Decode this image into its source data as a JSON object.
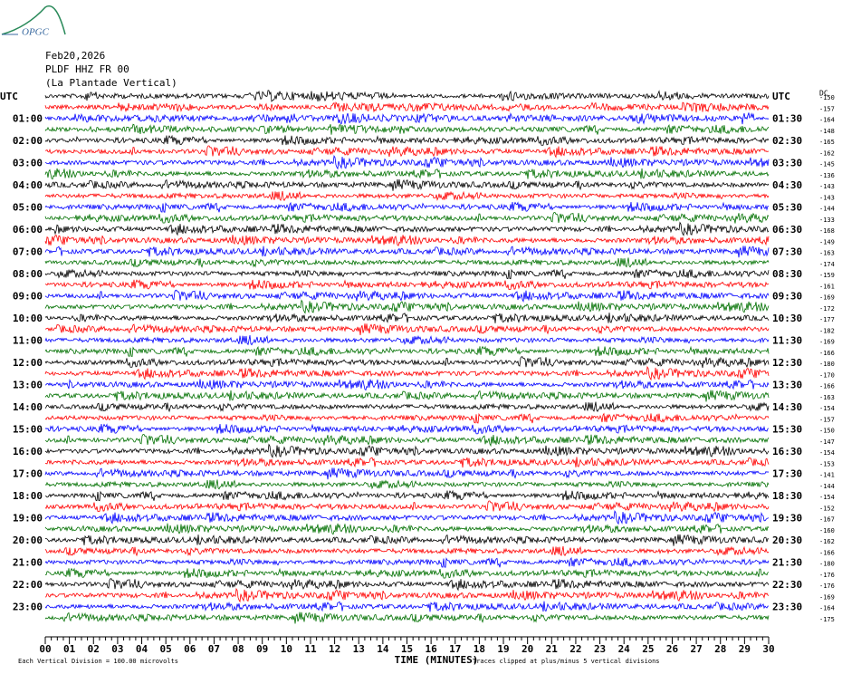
{
  "header": {
    "logo": "OPGC",
    "date": "Feb20,2026",
    "station": "PLDF HHZ FR 00",
    "location": "(La Plantade Vertical)"
  },
  "left_labels": [
    "UTC",
    "01:00",
    "02:00",
    "03:00",
    "04:00",
    "05:00",
    "06:00",
    "07:00",
    "08:00",
    "09:00",
    "10:00",
    "11:00",
    "12:00",
    "13:00",
    "14:00",
    "15:00",
    "16:00",
    "17:00",
    "18:00",
    "19:00",
    "20:00",
    "21:00",
    "22:00",
    "23:00"
  ],
  "right_labels": [
    "UTC",
    "01:30",
    "02:30",
    "03:30",
    "04:30",
    "05:30",
    "06:30",
    "07:30",
    "08:30",
    "09:30",
    "10:30",
    "11:30",
    "12:30",
    "13:30",
    "14:30",
    "15:30",
    "16:30",
    "17:30",
    "18:30",
    "19:30",
    "20:30",
    "21:30",
    "22:30",
    "23:30"
  ],
  "dc_label": "DC",
  "row_values": [
    -150,
    -157,
    -164,
    -148,
    -165,
    -162,
    -145,
    -136,
    -143,
    -143,
    -144,
    -133,
    -168,
    -149,
    -163,
    -174,
    -159,
    -161,
    -169,
    -172,
    -177,
    -182,
    -169,
    -166,
    -180,
    -170,
    -166,
    -163,
    -154,
    -157,
    -150,
    -147,
    -154,
    -153,
    -141,
    -144,
    -154,
    -152,
    -167,
    -160,
    -162,
    -166,
    -180,
    -176,
    -176,
    -169,
    -164,
    -175
  ],
  "trace_colors": [
    "#000000",
    "#ff0000",
    "#0000ff",
    "#007000"
  ],
  "x_axis": {
    "title": "TIME (MINUTES)",
    "xlim": [
      0,
      30
    ],
    "xticks": [
      {
        "value": 0,
        "label": "00"
      },
      {
        "value": 1,
        "label": "01"
      },
      {
        "value": 2,
        "label": "02"
      },
      {
        "value": 3,
        "label": "03"
      },
      {
        "value": 4,
        "label": "04"
      },
      {
        "value": 5,
        "label": "05"
      },
      {
        "value": 6,
        "label": "06"
      },
      {
        "value": 7,
        "label": "07"
      },
      {
        "value": 8,
        "label": "08"
      },
      {
        "value": 9,
        "label": "09"
      },
      10,
      11,
      12,
      13,
      14,
      15,
      16,
      17,
      18,
      19,
      20,
      21,
      22,
      23,
      24,
      25,
      26,
      27,
      28,
      29,
      30
    ]
  },
  "footer": {
    "scale_note": "Each Vertical Division =  100.00 microvolts",
    "clip_note": "Traces clipped at plus/minus 5 vertical divisions"
  }
}
